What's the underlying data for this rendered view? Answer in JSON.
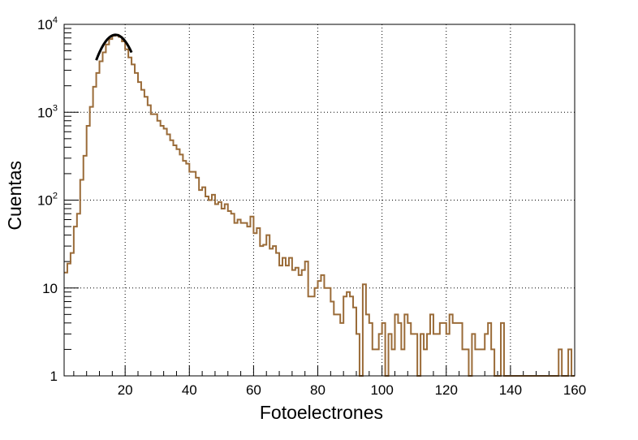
{
  "chart_data": {
    "type": "histogram",
    "title": "",
    "xlabel": "Fotoelectrones",
    "ylabel": "Cuentas",
    "xlim": [
      1,
      160
    ],
    "ylim": [
      1,
      10000
    ],
    "y_scale": "log",
    "grid": true,
    "x_tick_labels": [
      "20",
      "40",
      "60",
      "80",
      "100",
      "120",
      "140",
      "160"
    ],
    "x_tick_values": [
      20,
      40,
      60,
      80,
      100,
      120,
      140,
      160
    ],
    "y_tick_values": [
      1,
      10,
      100,
      1000,
      10000
    ],
    "y_tick_labels": [
      {
        "base": "1",
        "exp": ""
      },
      {
        "base": "10",
        "exp": ""
      },
      {
        "base": "10",
        "exp": "2"
      },
      {
        "base": "10",
        "exp": "3"
      },
      {
        "base": "10",
        "exp": "4"
      }
    ],
    "bin_width": 1,
    "bin_start": 1,
    "counts": [
      15,
      19,
      25,
      50,
      70,
      170,
      320,
      700,
      1150,
      1950,
      2800,
      3800,
      4800,
      5900,
      6800,
      7400,
      7600,
      7200,
      6400,
      5200,
      4200,
      3500,
      2800,
      2200,
      1800,
      1500,
      1200,
      950,
      950,
      800,
      700,
      650,
      560,
      480,
      420,
      380,
      330,
      280,
      260,
      210,
      210,
      180,
      130,
      140,
      110,
      100,
      115,
      90,
      95,
      80,
      90,
      75,
      70,
      55,
      60,
      55,
      55,
      50,
      65,
      42,
      48,
      30,
      31,
      40,
      28,
      30,
      25,
      18,
      22,
      18,
      22,
      16,
      17,
      14,
      16,
      20,
      8,
      8,
      10,
      12,
      14,
      10,
      10,
      7,
      5,
      5,
      4,
      8,
      9,
      8,
      6,
      3,
      1,
      11,
      5,
      4,
      2,
      2,
      3,
      4,
      1,
      3,
      2,
      5,
      4,
      2,
      5,
      4,
      3,
      3,
      1,
      3,
      2,
      3,
      5,
      3,
      3,
      4,
      4,
      3,
      5,
      4,
      4,
      4,
      2,
      2,
      1,
      3,
      2,
      2,
      2,
      3,
      4,
      2,
      1,
      1,
      4,
      1,
      1,
      1,
      1,
      1,
      1,
      1,
      1,
      1,
      1,
      1,
      1,
      1,
      1,
      1,
      1,
      1,
      2,
      1,
      1,
      2,
      1,
      1
    ],
    "fit": {
      "type": "gaussian",
      "amplitude": 7600,
      "mean": 17,
      "sigma": 5.2,
      "range": [
        11,
        22
      ]
    },
    "colors": {
      "histogram": "#9a6b38",
      "fit": "#000000",
      "grid": "#000000",
      "frame": "#000000"
    }
  }
}
